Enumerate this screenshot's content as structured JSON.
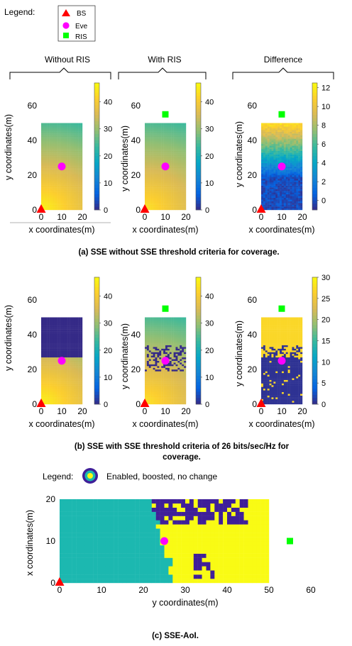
{
  "colors": {
    "bs": "#ff0000",
    "eve": "#ff00ff",
    "ris": "#00ff00",
    "parula": [
      "#352a87",
      "#0363e1",
      "#1485d4",
      "#06a7c6",
      "#38b99e",
      "#92bf73",
      "#d9ba56",
      "#fcce2e",
      "#f9fb0e"
    ],
    "dark": "#3f1f99",
    "teal": "#1cb8b0",
    "yellow": "#f9fb14"
  },
  "legend": {
    "title": "Legend:",
    "bs": "BS",
    "eve": "Eve",
    "ris": "RIS"
  },
  "column_headers": {
    "without": "Without RIS",
    "with": "With RIS",
    "diff": "Difference"
  },
  "captions": {
    "a": "(a) SSE without SSE threshold criteria for coverage.",
    "b1": "(b) SSE with SSE threshold criteria of 26 bits/sec/Hz for",
    "b2": "coverage.",
    "c": "(c) SSE-AoI."
  },
  "aoi_legend": {
    "title": "Legend:",
    "text": "Enabled, boosted, no change"
  },
  "chart_data": [
    {
      "id": "a1",
      "type": "heatmap",
      "panel": "(a) Without RIS",
      "xlabel": "x coordinates(m)",
      "ylabel": "y coordinates(m)",
      "xlim": [
        0,
        20
      ],
      "ylim": [
        0,
        60
      ],
      "xticks": [
        0,
        10,
        20
      ],
      "yticks": [
        0,
        20,
        40,
        60
      ],
      "colorbar": {
        "range": [
          0,
          47
        ],
        "ticks": [
          0,
          10,
          20,
          30,
          40
        ]
      },
      "map": "sse_without_ris",
      "markers": {
        "bs": [
          0,
          0
        ],
        "eve": [
          10,
          25
        ]
      }
    },
    {
      "id": "a2",
      "type": "heatmap",
      "panel": "(a) With RIS",
      "xlabel": "x coordinates(m)",
      "ylabel": "y coordinates(m)",
      "xlim": [
        0,
        20
      ],
      "ylim": [
        0,
        60
      ],
      "xticks": [
        0,
        10,
        20
      ],
      "yticks": [
        0,
        20,
        40,
        60
      ],
      "colorbar": {
        "range": [
          0,
          47
        ],
        "ticks": [
          0,
          10,
          20,
          30,
          40
        ]
      },
      "map": "sse_with_ris",
      "markers": {
        "bs": [
          0,
          0
        ],
        "eve": [
          10,
          25
        ],
        "ris": [
          10,
          55
        ]
      }
    },
    {
      "id": "a3",
      "type": "heatmap",
      "panel": "(a) Difference",
      "xlabel": "x coordinates(m)",
      "ylabel": "y coordinates(m)",
      "xlim": [
        0,
        20
      ],
      "ylim": [
        0,
        60
      ],
      "xticks": [
        0,
        10,
        20
      ],
      "yticks": [
        0,
        20,
        40,
        60
      ],
      "colorbar": {
        "range": [
          -1,
          12.5
        ],
        "ticks": [
          0,
          2,
          4,
          6,
          8,
          10,
          12
        ]
      },
      "map": "sse_difference",
      "markers": {
        "bs": [
          0,
          0
        ],
        "eve": [
          10,
          25
        ],
        "ris": [
          10,
          55
        ]
      }
    },
    {
      "id": "b1",
      "type": "heatmap",
      "panel": "(b) Without RIS",
      "xlabel": "x coordinates(m)",
      "ylabel": "y coordinates(m)",
      "xlim": [
        0,
        20
      ],
      "ylim": [
        0,
        60
      ],
      "xticks": [
        0,
        10,
        20
      ],
      "yticks": [
        0,
        20,
        40,
        60
      ],
      "colorbar": {
        "range": [
          0,
          47
        ],
        "ticks": [
          0,
          10,
          20,
          30,
          40
        ]
      },
      "map": "sse_threshold_without_ris",
      "threshold": 26,
      "markers": {
        "bs": [
          0,
          0
        ],
        "eve": [
          10,
          25
        ]
      }
    },
    {
      "id": "b2",
      "type": "heatmap",
      "panel": "(b) With RIS",
      "xlabel": "x coordinates(m)",
      "ylabel": "y coordinates(m)",
      "xlim": [
        0,
        20
      ],
      "ylim": [
        0,
        60
      ],
      "xticks": [
        0,
        10,
        20
      ],
      "yticks": [
        0,
        20,
        40
      ],
      "colorbar": {
        "range": [
          0,
          47
        ],
        "ticks": [
          0,
          10,
          20,
          30,
          40
        ]
      },
      "map": "sse_threshold_with_ris",
      "threshold": 26,
      "markers": {
        "bs": [
          0,
          0
        ],
        "eve": [
          10,
          25
        ],
        "ris": [
          10,
          55
        ]
      }
    },
    {
      "id": "b3",
      "type": "heatmap",
      "panel": "(b) Difference",
      "xlabel": "x coordinates(m)",
      "ylabel": "y coordinates(m)",
      "xlim": [
        0,
        20
      ],
      "ylim": [
        0,
        60
      ],
      "xticks": [
        0,
        10,
        20
      ],
      "yticks": [
        0,
        20,
        40,
        60
      ],
      "colorbar": {
        "range": [
          0,
          30
        ],
        "ticks": [
          0,
          5,
          10,
          15,
          20,
          25,
          30
        ]
      },
      "map": "sse_threshold_difference",
      "markers": {
        "bs": [
          0,
          0
        ],
        "eve": [
          10,
          25
        ],
        "ris": [
          10,
          55
        ]
      }
    },
    {
      "id": "c",
      "type": "heatmap",
      "panel": "(c) SSE-AoI",
      "xlabel": "y coordinates(m)",
      "ylabel": "x coordinates(m)",
      "xlim": [
        0,
        60
      ],
      "ylim": [
        0,
        20
      ],
      "xticks": [
        0,
        10,
        20,
        30,
        40,
        50,
        60
      ],
      "yticks": [
        0,
        10,
        20
      ],
      "categories": [
        "Enabled",
        "boosted",
        "no change"
      ],
      "map": "sse_aoi",
      "markers": {
        "bs": [
          0,
          0
        ],
        "eve": [
          25,
          10
        ],
        "ris": [
          55,
          10
        ]
      }
    }
  ]
}
